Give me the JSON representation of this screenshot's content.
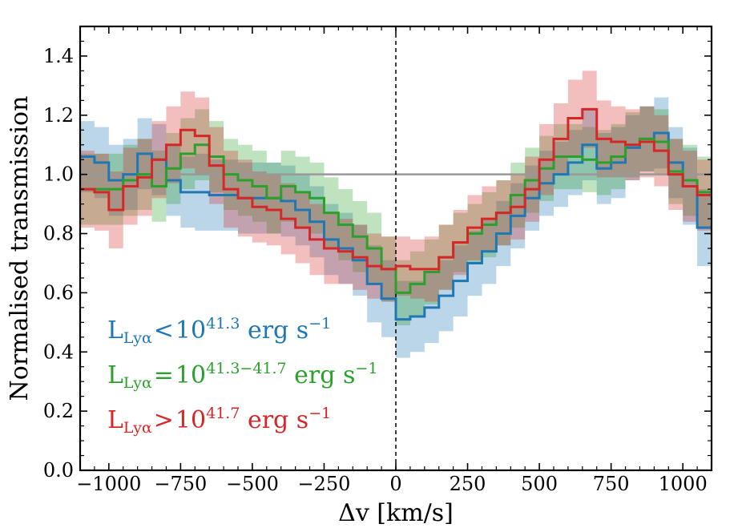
{
  "chart_data": {
    "type": "line",
    "xlabel": "Δv [km/s]",
    "ylabel": "Normalised transmission",
    "xlim": [
      -1100,
      1100
    ],
    "ylim": [
      0.0,
      1.5
    ],
    "x_ticks": [
      -1000,
      -750,
      -500,
      -250,
      0,
      250,
      500,
      750,
      1000
    ],
    "x_tick_labels": [
      "−1000",
      "−750",
      "−500",
      "−250",
      "0",
      "250",
      "500",
      "750",
      "1000"
    ],
    "y_ticks": [
      0.0,
      0.2,
      0.4,
      0.6,
      0.8,
      1.0,
      1.2,
      1.4
    ],
    "y_tick_labels": [
      "0.0",
      "0.2",
      "0.4",
      "0.6",
      "0.8",
      "1.0",
      "1.2",
      "1.4"
    ],
    "style": "step histogram with shaded error bands",
    "bin_edges": [
      -1100,
      -1050,
      -1000,
      -950,
      -900,
      -850,
      -800,
      -750,
      -700,
      -650,
      -600,
      -550,
      -500,
      -450,
      -400,
      -350,
      -300,
      -250,
      -200,
      -150,
      -100,
      -50,
      0,
      50,
      100,
      150,
      200,
      250,
      300,
      350,
      400,
      450,
      500,
      550,
      600,
      650,
      700,
      750,
      800,
      850,
      900,
      950,
      1000,
      1050,
      1100
    ],
    "reference_lines": [
      {
        "orientation": "horizontal",
        "value": 1.0,
        "style": "solid",
        "color": "#999999"
      },
      {
        "orientation": "vertical",
        "value": 0,
        "style": "dashed",
        "color": "#000000"
      }
    ],
    "series": [
      {
        "name": "blue",
        "color": "#1f77b4",
        "values": [
          1.06,
          1.04,
          0.98,
          1.0,
          1.07,
          1.05,
          0.98,
          0.94,
          0.94,
          0.93,
          0.93,
          0.92,
          0.92,
          0.92,
          0.91,
          0.88,
          0.84,
          0.78,
          0.75,
          0.71,
          0.63,
          0.58,
          0.51,
          0.52,
          0.55,
          0.59,
          0.64,
          0.7,
          0.74,
          0.8,
          0.86,
          0.92,
          0.97,
          1.0,
          1.04,
          1.1,
          1.02,
          1.04,
          1.09,
          1.12,
          1.14,
          1.04,
          0.96,
          0.82
        ],
        "band_half_width": [
          0.12,
          0.12,
          0.12,
          0.12,
          0.12,
          0.12,
          0.12,
          0.12,
          0.13,
          0.12,
          0.12,
          0.12,
          0.12,
          0.12,
          0.12,
          0.12,
          0.12,
          0.12,
          0.12,
          0.12,
          0.13,
          0.13,
          0.13,
          0.12,
          0.12,
          0.12,
          0.12,
          0.11,
          0.11,
          0.11,
          0.11,
          0.11,
          0.11,
          0.11,
          0.11,
          0.12,
          0.12,
          0.12,
          0.11,
          0.11,
          0.12,
          0.12,
          0.13,
          0.13
        ]
      },
      {
        "name": "green",
        "color": "#2ca02c",
        "values": [
          0.95,
          0.95,
          0.95,
          0.98,
          1.0,
          0.96,
          1.02,
          1.07,
          1.1,
          1.06,
          1.0,
          0.98,
          0.96,
          0.92,
          0.96,
          0.94,
          0.92,
          0.87,
          0.83,
          0.79,
          0.75,
          0.68,
          0.6,
          0.63,
          0.67,
          0.72,
          0.77,
          0.8,
          0.83,
          0.87,
          0.93,
          0.98,
          1.02,
          1.06,
          1.06,
          1.05,
          1.04,
          1.06,
          1.1,
          1.12,
          1.11,
          1.01,
          0.98,
          0.94
        ],
        "band_half_width": [
          0.12,
          0.12,
          0.12,
          0.12,
          0.12,
          0.12,
          0.12,
          0.12,
          0.12,
          0.12,
          0.12,
          0.12,
          0.12,
          0.12,
          0.12,
          0.12,
          0.12,
          0.12,
          0.12,
          0.12,
          0.12,
          0.11,
          0.11,
          0.11,
          0.11,
          0.11,
          0.1,
          0.1,
          0.11,
          0.11,
          0.11,
          0.11,
          0.11,
          0.11,
          0.11,
          0.11,
          0.11,
          0.11,
          0.11,
          0.11,
          0.11,
          0.11,
          0.12,
          0.12
        ]
      },
      {
        "name": "red",
        "color": "#d62728",
        "values": [
          0.95,
          0.94,
          0.88,
          0.96,
          0.99,
          1.05,
          1.1,
          1.15,
          1.13,
          1.03,
          0.95,
          0.92,
          0.89,
          0.88,
          0.85,
          0.82,
          0.78,
          0.75,
          0.74,
          0.72,
          0.69,
          0.68,
          0.69,
          0.68,
          0.68,
          0.72,
          0.77,
          0.82,
          0.85,
          0.87,
          0.89,
          0.95,
          1.05,
          1.12,
          1.19,
          1.22,
          1.12,
          1.11,
          1.1,
          1.11,
          1.08,
          1.0,
          0.96,
          0.93
        ],
        "band_half_width": [
          0.13,
          0.13,
          0.13,
          0.13,
          0.13,
          0.13,
          0.13,
          0.13,
          0.13,
          0.13,
          0.13,
          0.13,
          0.12,
          0.12,
          0.12,
          0.12,
          0.12,
          0.12,
          0.11,
          0.11,
          0.11,
          0.11,
          0.1,
          0.1,
          0.11,
          0.11,
          0.11,
          0.11,
          0.11,
          0.11,
          0.11,
          0.11,
          0.12,
          0.12,
          0.13,
          0.13,
          0.13,
          0.12,
          0.12,
          0.12,
          0.12,
          0.12,
          0.12,
          0.12
        ]
      }
    ],
    "legend": {
      "placement": "lower-left",
      "entries": [
        {
          "color": "#1f77b4",
          "symbol": "L",
          "subscript": "Lyα",
          "relation": "<",
          "base": "10",
          "exponent": "41.3",
          "unit": " erg s",
          "unit_exponent": "−1"
        },
        {
          "color": "#2ca02c",
          "symbol": "L",
          "subscript": "Lyα",
          "relation": "=",
          "base": "10",
          "exponent": "41.3−41.7",
          "unit": " erg s",
          "unit_exponent": "−1"
        },
        {
          "color": "#d62728",
          "symbol": "L",
          "subscript": "Lyα",
          "relation": ">",
          "base": "10",
          "exponent": "41.7",
          "unit": " erg s",
          "unit_exponent": "−1"
        }
      ]
    }
  }
}
